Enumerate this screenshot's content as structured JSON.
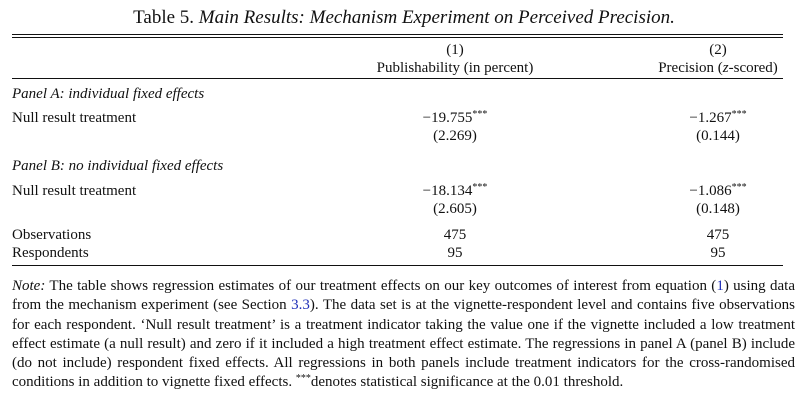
{
  "caption": {
    "number": "Table 5.",
    "title": "Main Results: Mechanism Experiment on Perceived Precision."
  },
  "columns": [
    {
      "number": "(1)",
      "label": "Publishability (in percent)"
    },
    {
      "number": "(2)",
      "label_prefix": "Precision (",
      "label_italic": "z",
      "label_suffix": "-scored)"
    }
  ],
  "panels": [
    {
      "heading": "Panel A: individual fixed effects",
      "row_label": "Null result treatment",
      "coef": [
        "−19.755",
        "−1.267"
      ],
      "stars": [
        "***",
        "***"
      ],
      "se": [
        "(2.269)",
        "(0.144)"
      ]
    },
    {
      "heading": "Panel B: no individual fixed effects",
      "row_label": "Null result treatment",
      "coef": [
        "−18.134",
        "−1.086"
      ],
      "stars": [
        "***",
        "***"
      ],
      "se": [
        "(2.605)",
        "(0.148)"
      ]
    }
  ],
  "stats": [
    {
      "label": "Observations",
      "values": [
        "475",
        "475"
      ]
    },
    {
      "label": "Respondents",
      "values": [
        "95",
        "95"
      ]
    }
  ],
  "note": {
    "label": "Note:",
    "part1": " The table shows regression estimates of our treatment effects on our key outcomes of interest from equation (",
    "ref_equation": "1",
    "part2": ") using data from the mechanism experiment (see Section ",
    "ref_section": "3.3",
    "part3": "). The data set is at the vignette-respondent level and contains five observations for each respondent. ‘Null result treatment’ is a treatment indicator taking the value one if the vignette included a low treatment effect estimate (a null result) and zero if it included a high treatment effect estimate. The regressions in panel A (panel B) include (do not include) respondent fixed effects. All regressions in both panels include treatment indicators for the cross-randomised conditions in addition to vignette fixed effects. ",
    "stars": "***",
    "part4": "denotes statistical significance at the 0.01 threshold."
  }
}
